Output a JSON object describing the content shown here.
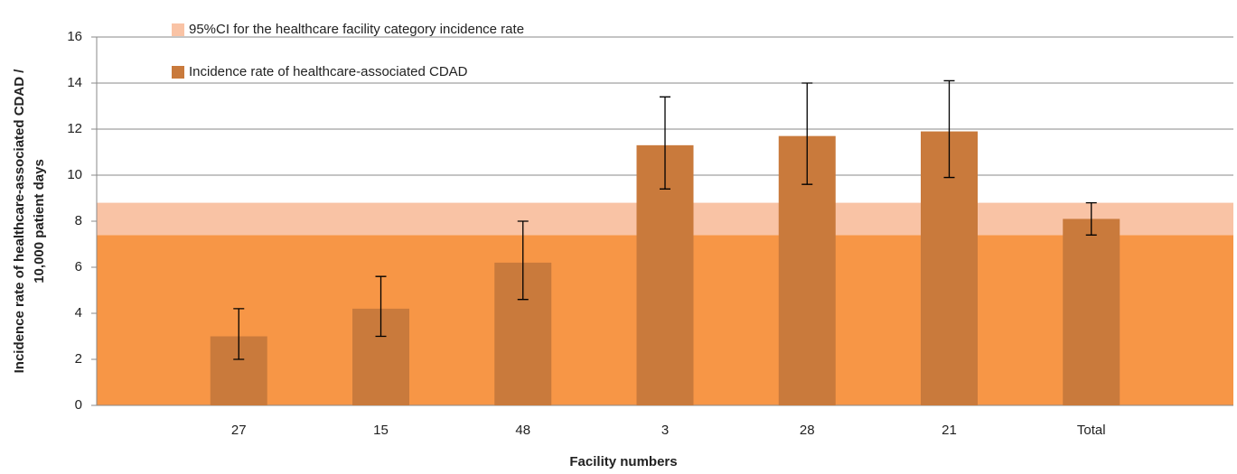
{
  "chart_data": {
    "type": "bar",
    "categories": [
      "27",
      "15",
      "48",
      "3",
      "28",
      "21",
      "Total"
    ],
    "series": [
      {
        "name": "Incidence rate of healthcare-associated  CDAD",
        "color": "#c97a3c",
        "values": [
          3.0,
          4.2,
          6.2,
          11.3,
          11.7,
          11.9,
          8.1
        ],
        "ci_low": [
          2.0,
          3.0,
          4.6,
          9.4,
          9.6,
          9.9,
          7.4
        ],
        "ci_high": [
          4.2,
          5.6,
          8.0,
          13.4,
          14.0,
          14.1,
          8.8
        ]
      }
    ],
    "band": {
      "name": "95%CI for the healthcare facility category incidence rate",
      "color": "#f9c3a5",
      "below_color": "#f79646",
      "low": 7.4,
      "high": 8.8
    },
    "xlabel": "Facility numbers",
    "ylabel": [
      "Incidence rate of healthcare-associated  CDAD /",
      "10,000 patient days"
    ],
    "ylim": [
      0,
      16
    ],
    "yticks": [
      0,
      2,
      4,
      6,
      8,
      10,
      12,
      14,
      16
    ],
    "grid": true
  }
}
